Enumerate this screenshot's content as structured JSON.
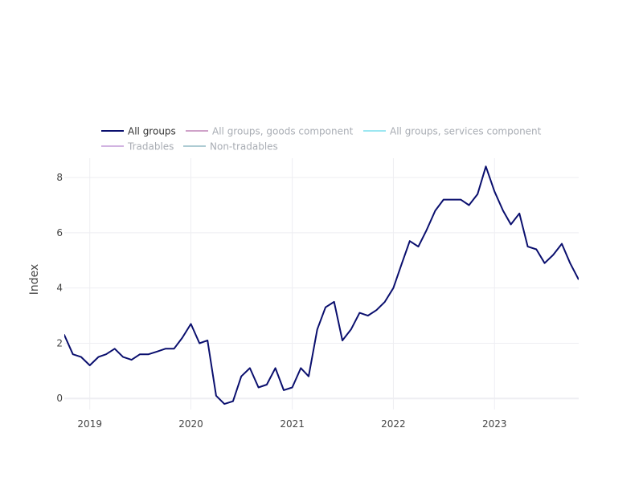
{
  "chart_data": {
    "type": "line",
    "title": "",
    "xlabel": "",
    "ylabel": "Index",
    "xlim": [
      "2018-10-01",
      "2023-11-01"
    ],
    "ylim": [
      -0.4,
      8.7
    ],
    "x_ticks": [
      {
        "label": "2019",
        "date": "2019-01-01"
      },
      {
        "label": "2020",
        "date": "2020-01-01"
      },
      {
        "label": "2021",
        "date": "2021-01-01"
      },
      {
        "label": "2022",
        "date": "2022-01-01"
      },
      {
        "label": "2023",
        "date": "2023-01-01"
      }
    ],
    "y_ticks": [
      0,
      2,
      4,
      6,
      8
    ],
    "grid": true,
    "legend_position": "top-left",
    "series": [
      {
        "name": "All groups",
        "color": "#0a0f6e",
        "visible": true,
        "x": [
          "2018-09-01",
          "2018-10-01",
          "2018-11-01",
          "2018-12-01",
          "2019-01-01",
          "2019-02-01",
          "2019-03-01",
          "2019-04-01",
          "2019-05-01",
          "2019-06-01",
          "2019-07-01",
          "2019-08-01",
          "2019-09-01",
          "2019-10-01",
          "2019-11-01",
          "2019-12-01",
          "2020-01-01",
          "2020-02-01",
          "2020-03-01",
          "2020-04-01",
          "2020-05-01",
          "2020-06-01",
          "2020-07-01",
          "2020-08-01",
          "2020-09-01",
          "2020-10-01",
          "2020-11-01",
          "2020-12-01",
          "2021-01-01",
          "2021-02-01",
          "2021-03-01",
          "2021-04-01",
          "2021-05-01",
          "2021-06-01",
          "2021-07-01",
          "2021-08-01",
          "2021-09-01",
          "2021-10-01",
          "2021-11-01",
          "2021-12-01",
          "2022-01-01",
          "2022-02-01",
          "2022-03-01",
          "2022-04-01",
          "2022-05-01",
          "2022-06-01",
          "2022-07-01",
          "2022-08-01",
          "2022-09-01",
          "2022-10-01",
          "2022-11-01",
          "2022-12-01",
          "2023-01-01",
          "2023-02-01",
          "2023-03-01",
          "2023-04-01",
          "2023-05-01",
          "2023-06-01",
          "2023-07-01",
          "2023-08-01",
          "2023-09-01",
          "2023-10-01",
          "2023-11-01"
        ],
        "values": [
          2.0,
          2.3,
          1.6,
          1.5,
          1.2,
          1.5,
          1.6,
          1.8,
          1.5,
          1.4,
          1.6,
          1.6,
          1.7,
          1.8,
          1.8,
          2.2,
          2.7,
          2.0,
          2.1,
          0.1,
          -0.2,
          -0.1,
          0.8,
          1.1,
          0.4,
          0.5,
          1.1,
          0.3,
          0.4,
          1.1,
          0.8,
          2.5,
          3.3,
          3.5,
          2.1,
          2.5,
          3.1,
          3.0,
          3.2,
          3.5,
          4.0,
          4.9,
          5.7,
          5.5,
          6.1,
          6.8,
          7.2,
          7.2,
          7.2,
          7.0,
          7.4,
          8.4,
          7.5,
          6.8,
          6.3,
          6.7,
          5.5,
          5.4,
          4.9,
          5.2,
          5.6,
          4.9,
          4.3
        ]
      },
      {
        "name": "All groups, goods component",
        "color": "#c792c0",
        "visible": false,
        "x": [],
        "values": []
      },
      {
        "name": "All groups, services component",
        "color": "#8be3ef",
        "visible": false,
        "x": [],
        "values": []
      },
      {
        "name": "Tradables",
        "color": "#c9a6dc",
        "visible": false,
        "x": [],
        "values": []
      },
      {
        "name": "Non-tradables",
        "color": "#9fc2cc",
        "visible": false,
        "x": [],
        "values": []
      }
    ]
  },
  "colors": {
    "grid": "#eeeef2",
    "tick_text": "#444444",
    "legend_active_text": "#333333",
    "legend_inactive_text": "#999ea6"
  }
}
